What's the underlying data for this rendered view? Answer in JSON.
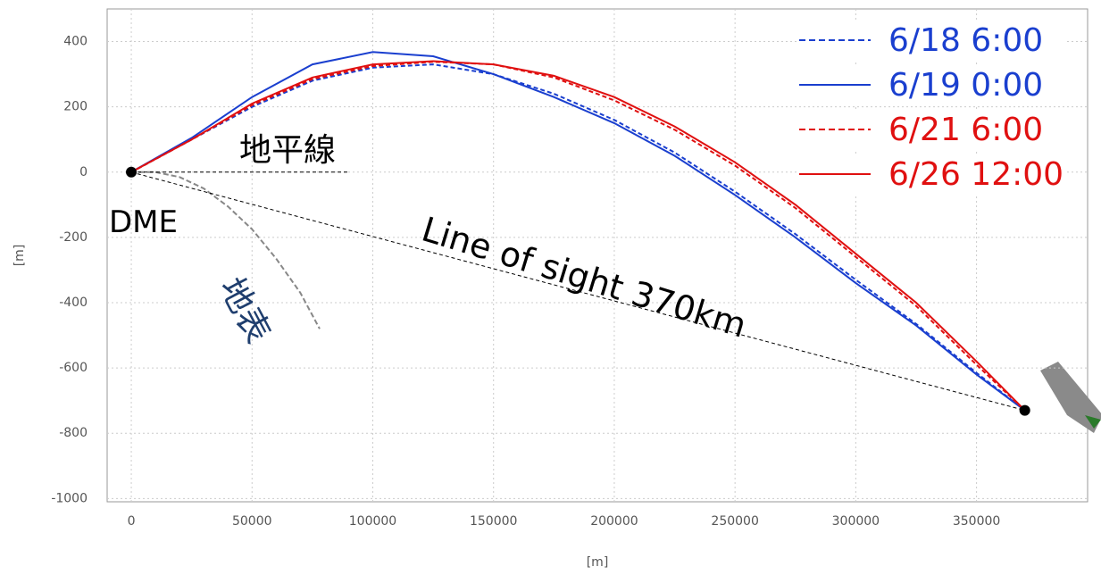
{
  "chart_data": {
    "type": "line",
    "x_label": "[m]",
    "y_label": "[m]",
    "xlim": [
      -10000,
      396000
    ],
    "ylim": [
      -1010,
      500
    ],
    "xticks": [
      0,
      50000,
      100000,
      150000,
      200000,
      250000,
      300000,
      350000
    ],
    "yticks": [
      -1000,
      -800,
      -600,
      -400,
      -200,
      0,
      200,
      400
    ],
    "grid": true,
    "legend": "upper right",
    "x": [
      0,
      25000,
      50000,
      75000,
      100000,
      125000,
      150000,
      175000,
      200000,
      225000,
      250000,
      275000,
      300000,
      325000,
      350000,
      370000
    ],
    "series": [
      {
        "name": "6/18 6:00",
        "color": "#1a3fcf",
        "dashed": true,
        "values": [
          0,
          100,
          200,
          280,
          320,
          330,
          300,
          240,
          160,
          60,
          -60,
          -190,
          -330,
          -465,
          -615,
          -730
        ]
      },
      {
        "name": "6/19 0:00",
        "color": "#1a3fcf",
        "dashed": false,
        "values": [
          0,
          105,
          230,
          330,
          368,
          355,
          300,
          230,
          150,
          50,
          -70,
          -200,
          -340,
          -470,
          -620,
          -730
        ]
      },
      {
        "name": "6/21 6:00",
        "color": "#e01010",
        "dashed": true,
        "values": [
          0,
          100,
          205,
          285,
          325,
          338,
          330,
          290,
          220,
          130,
          20,
          -110,
          -260,
          -410,
          -590,
          -730
        ]
      },
      {
        "name": "6/26 12:00",
        "color": "#e01010",
        "dashed": false,
        "values": [
          0,
          100,
          210,
          290,
          330,
          340,
          330,
          295,
          230,
          140,
          30,
          -100,
          -250,
          -400,
          -580,
          -730
        ]
      }
    ],
    "surface": {
      "label": "地表",
      "color": "#888888",
      "x": [
        0,
        10000,
        20000,
        30000,
        40000,
        50000,
        60000,
        70000,
        78000
      ],
      "values": [
        0,
        0,
        -15,
        -50,
        -105,
        -175,
        -265,
        -370,
        -480
      ]
    },
    "annotations": [
      {
        "label": "地平線",
        "x": [
          0,
          90000
        ],
        "y": [
          0,
          0
        ]
      },
      {
        "label": "Line of sight 370km",
        "x": [
          0,
          370000
        ],
        "y": [
          0,
          -730
        ]
      }
    ],
    "points": [
      {
        "label": "DME",
        "x": 0,
        "y": 0
      },
      {
        "x": 370000,
        "y": -730
      }
    ]
  }
}
